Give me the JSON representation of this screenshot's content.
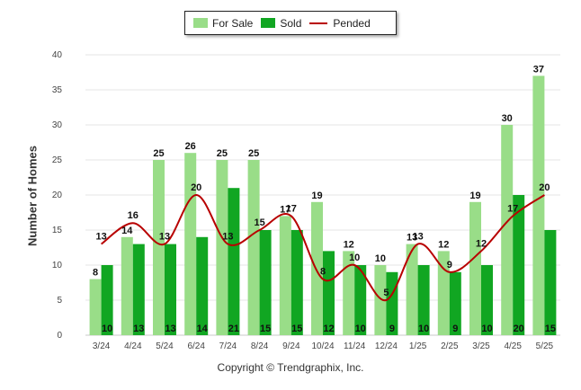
{
  "chart_data": {
    "type": "bar",
    "ylabel": "Number of Homes",
    "ylim": [
      0,
      40
    ],
    "yticks": [
      "0",
      "5",
      "10",
      "15",
      "20",
      "25",
      "30",
      "35",
      "40"
    ],
    "categories": [
      "3/24",
      "4/24",
      "5/24",
      "6/24",
      "7/24",
      "8/24",
      "9/24",
      "10/24",
      "11/24",
      "12/24",
      "1/25",
      "2/25",
      "3/25",
      "4/25",
      "5/25"
    ],
    "series": [
      {
        "name": "For Sale",
        "type": "bar",
        "color": "#99dd88",
        "values": [
          8,
          14,
          25,
          26,
          25,
          25,
          17,
          19,
          12,
          10,
          13,
          12,
          19,
          30,
          37
        ]
      },
      {
        "name": "Sold",
        "type": "bar",
        "color": "#11a622",
        "values": [
          10,
          13,
          13,
          14,
          21,
          15,
          15,
          12,
          10,
          9,
          10,
          9,
          10,
          20,
          15
        ]
      },
      {
        "name": "Pended",
        "type": "line",
        "color": "#b80000",
        "values": [
          13,
          16,
          13,
          20,
          13,
          15,
          17,
          8,
          10,
          5,
          13,
          9,
          12,
          17,
          20
        ]
      }
    ],
    "grid": true,
    "legend_position": "top-center"
  },
  "footer": {
    "copyright": "Copyright © Trendgraphix, Inc."
  }
}
